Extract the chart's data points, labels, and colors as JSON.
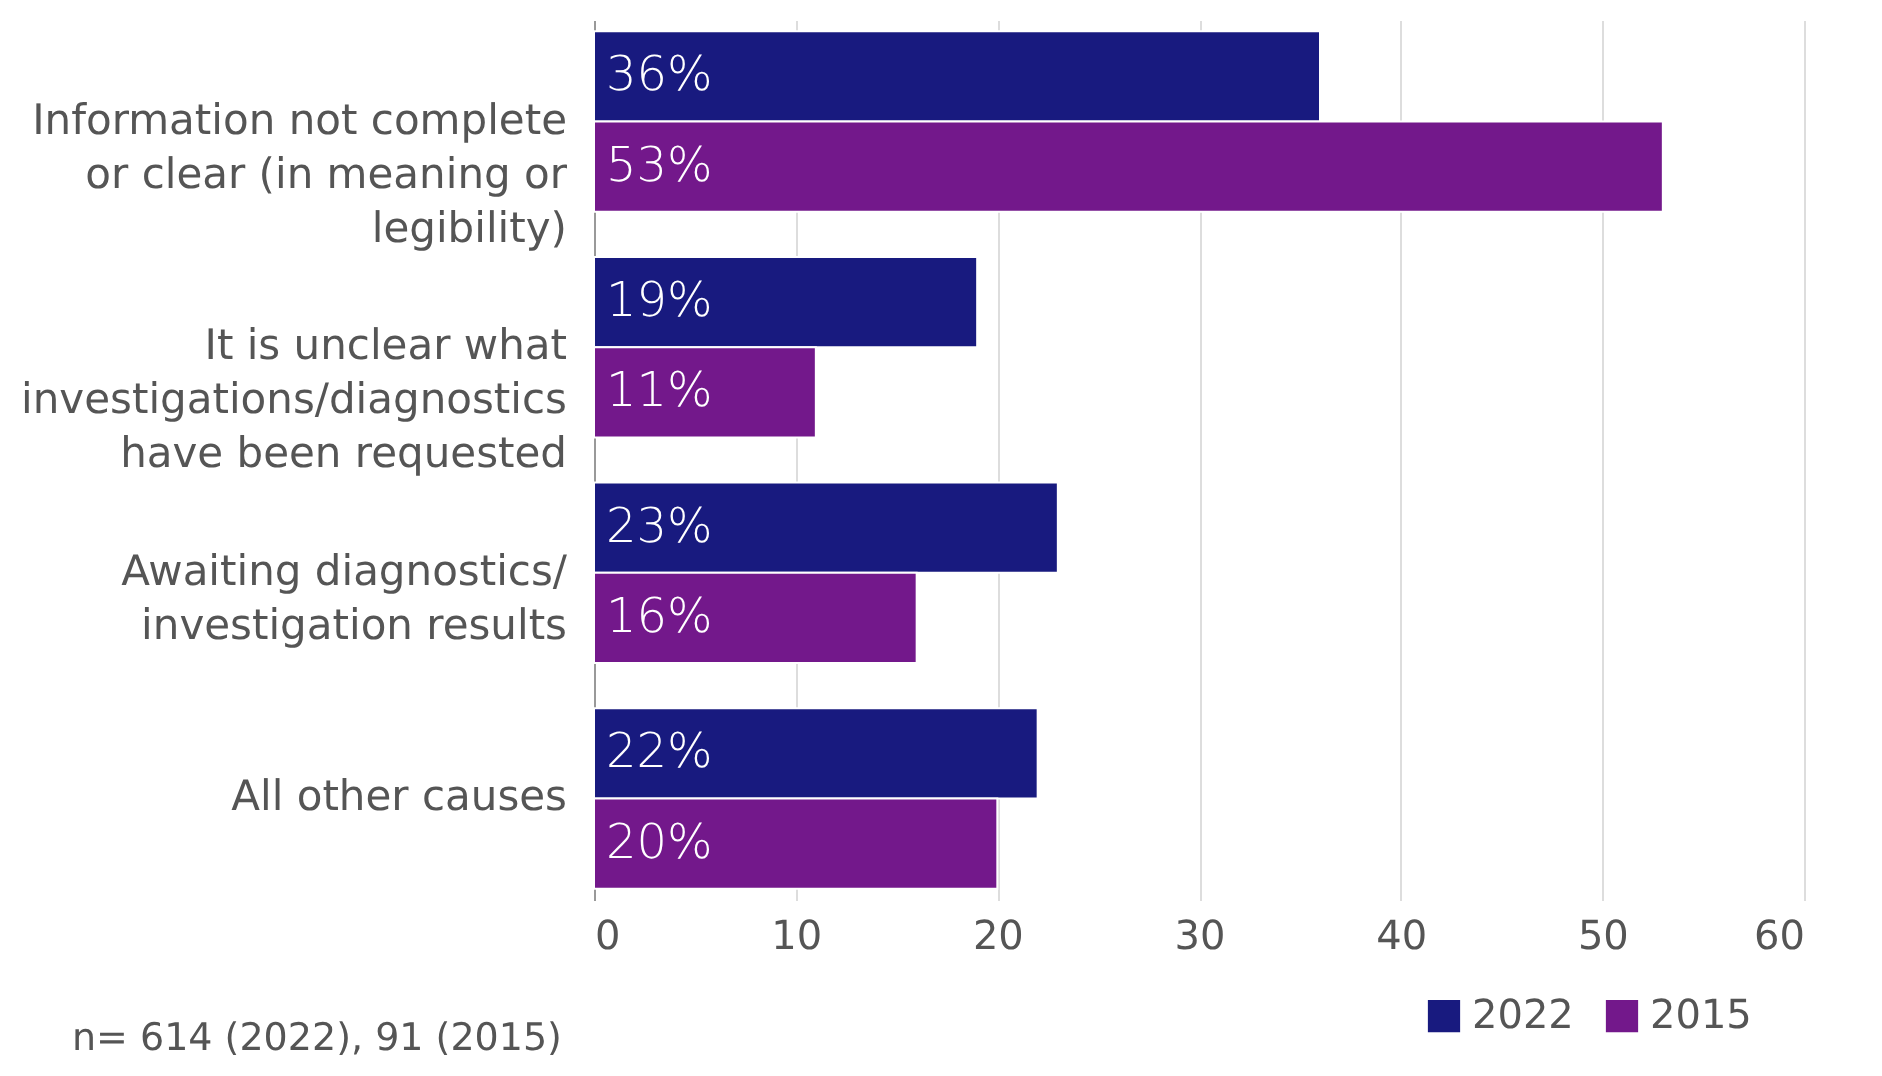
{
  "chart_data": {
    "type": "bar",
    "orientation": "horizontal",
    "categories": [
      "Information not complete or clear (in meaning or legibility)",
      "It is unclear what investigations/diagnostics have been requested",
      "Awaiting diagnostics/ investigation results",
      "All other causes"
    ],
    "series": [
      {
        "name": "2022",
        "color": "#181a7f",
        "values": [
          36,
          19,
          23,
          22
        ],
        "value_labels": [
          "36%",
          "19%",
          "23%",
          "22%"
        ]
      },
      {
        "name": "2015",
        "color": "#73188b",
        "values": [
          53,
          11,
          16,
          20
        ],
        "value_labels": [
          "53%",
          "11%",
          "16%",
          "20%"
        ]
      }
    ],
    "xlim": [
      0,
      60
    ],
    "xticks": [
      0,
      10,
      20,
      30,
      40,
      50,
      60
    ],
    "grid": "x",
    "legend": "bottom right",
    "annotations": [
      "n= 614 (2022), 91 (2015)"
    ]
  }
}
